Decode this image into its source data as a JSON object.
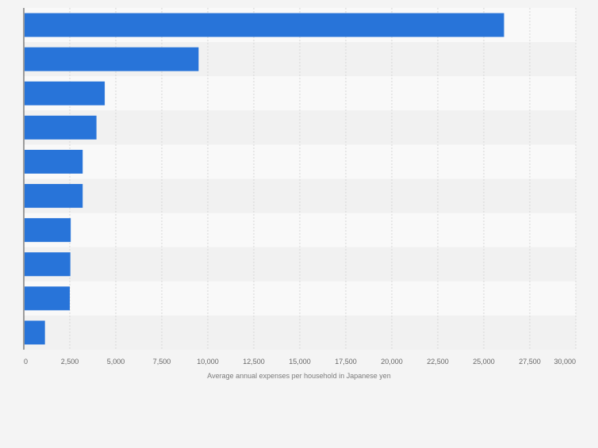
{
  "chart_data": {
    "type": "bar",
    "orientation": "horizontal",
    "categories": [
      "",
      "",
      "",
      "",
      "",
      "",
      "",
      "",
      "",
      ""
    ],
    "values": [
      26100,
      9500,
      4400,
      3950,
      3200,
      3200,
      2550,
      2530,
      2500,
      1150
    ],
    "title": "",
    "xlabel": "Average annual expenses per household in Japanese yen",
    "ylabel": "",
    "xlim": [
      0,
      30000
    ],
    "xticks": [
      0,
      2500,
      5000,
      7500,
      10000,
      12500,
      15000,
      17500,
      20000,
      22500,
      25000,
      27500,
      30000
    ],
    "xtick_labels": [
      "0",
      "2,500",
      "5,000",
      "7,500",
      "10,000",
      "12,500",
      "15,000",
      "17,500",
      "20,000",
      "22,500",
      "25,000",
      "27,500",
      "30,000"
    ],
    "grid": true,
    "legend": "none"
  },
  "colors": {
    "bar": "#2874d9",
    "band_light": "#f9f9f9",
    "band_dark": "#f1f1f1",
    "grid": "#d8d8d8",
    "axis": "#444444",
    "tick_text": "#666666",
    "label_text": "#7b7b7b"
  }
}
